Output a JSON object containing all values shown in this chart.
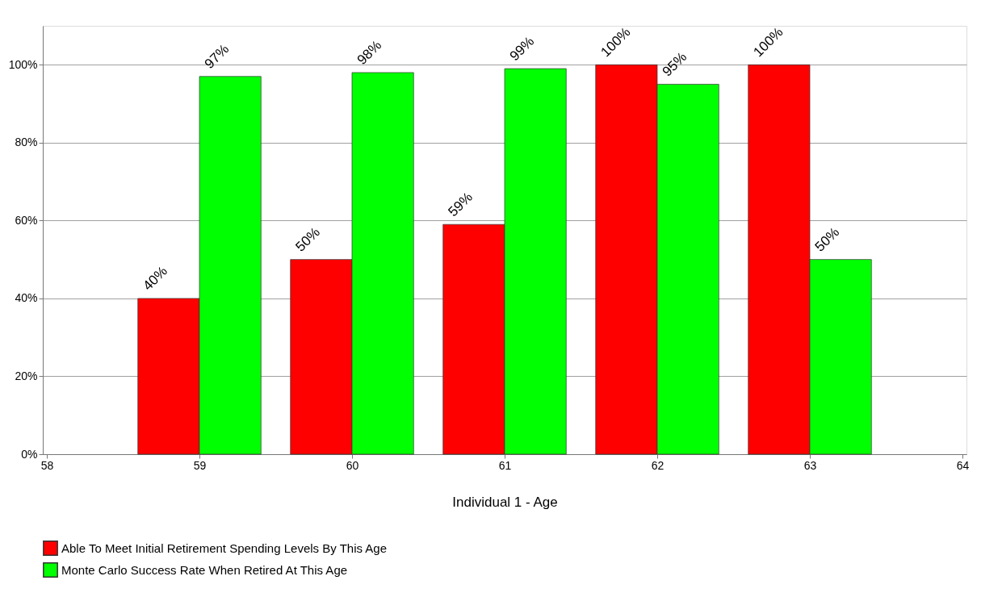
{
  "chart_data": {
    "type": "bar",
    "xlabel": "Individual 1 - Age",
    "x": [
      59,
      60,
      61,
      62,
      63
    ],
    "xlim": [
      58,
      64
    ],
    "xticks": [
      58,
      59,
      60,
      61,
      62,
      63,
      64
    ],
    "ylim": [
      0,
      110
    ],
    "yticks": [
      {
        "value": 0,
        "label": "0%"
      },
      {
        "value": 20,
        "label": "20%"
      },
      {
        "value": 40,
        "label": "40%"
      },
      {
        "value": 60,
        "label": "60%"
      },
      {
        "value": 80,
        "label": "80%"
      },
      {
        "value": 100,
        "label": "100%"
      }
    ],
    "grid": "y",
    "legend": "bottom",
    "series": [
      {
        "name": "Able To Meet Initial Retirement Spending Levels By This Age",
        "color": "#ff0000",
        "values": [
          40,
          50,
          59,
          100,
          100
        ],
        "value_labels": [
          "40%",
          "50%",
          "59%",
          "100%",
          "100%"
        ]
      },
      {
        "name": "Monte Carlo Success Rate When Retired At This Age",
        "color": "#00ff00",
        "values": [
          97,
          98,
          99,
          95,
          50
        ],
        "value_labels": [
          "97%",
          "98%",
          "99%",
          "95%",
          "50%"
        ]
      }
    ]
  }
}
